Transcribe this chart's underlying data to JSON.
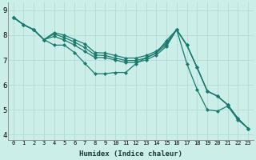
{
  "xlabel": "Humidex (Indice chaleur)",
  "bg_color": "#cceee8",
  "line_color": "#1a7a6e",
  "grid_color": "#aadddd",
  "xlim": [
    -0.5,
    23.5
  ],
  "ylim": [
    3.8,
    9.3
  ],
  "xticks": [
    0,
    1,
    2,
    3,
    4,
    5,
    6,
    7,
    8,
    9,
    10,
    11,
    12,
    13,
    14,
    15,
    16,
    17,
    18,
    19,
    20,
    21,
    22,
    23
  ],
  "yticks": [
    4,
    5,
    6,
    7,
    8,
    9
  ],
  "series": [
    [
      8.72,
      8.42,
      8.22,
      7.82,
      7.6,
      7.6,
      7.3,
      6.87,
      6.45,
      6.45,
      6.5,
      6.5,
      6.85,
      7.1,
      7.28,
      7.78,
      8.22,
      6.85,
      5.82,
      5.0,
      4.95,
      5.15,
      4.6,
      4.25
    ],
    [
      8.72,
      8.42,
      8.22,
      7.82,
      7.95,
      7.8,
      7.6,
      7.35,
      7.1,
      7.1,
      7.0,
      6.9,
      6.9,
      7.0,
      7.2,
      7.55,
      8.22,
      7.6,
      6.7,
      5.75,
      5.55,
      5.2,
      4.65,
      4.25
    ],
    [
      8.72,
      8.42,
      8.22,
      7.82,
      8.05,
      7.9,
      7.72,
      7.5,
      7.2,
      7.18,
      7.08,
      6.98,
      6.98,
      7.08,
      7.28,
      7.62,
      8.22,
      7.6,
      6.7,
      5.75,
      5.55,
      5.2,
      4.65,
      4.25
    ],
    [
      8.72,
      8.42,
      8.22,
      7.82,
      8.1,
      8.0,
      7.82,
      7.65,
      7.3,
      7.28,
      7.18,
      7.08,
      7.08,
      7.18,
      7.35,
      7.68,
      8.22,
      7.6,
      6.7,
      5.75,
      5.55,
      5.2,
      4.65,
      4.25
    ]
  ]
}
